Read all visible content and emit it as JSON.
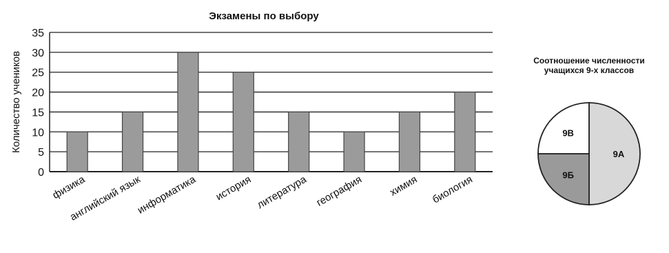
{
  "chart_data": [
    {
      "type": "bar",
      "title": "Экзамены по выбору",
      "xlabel": "",
      "ylabel": "Количество учеников",
      "ylim": [
        0,
        35
      ],
      "yticks": [
        0,
        5,
        10,
        15,
        20,
        25,
        30,
        35
      ],
      "grid": true,
      "categories": [
        "физика",
        "английский язык",
        "информатика",
        "история",
        "литература",
        "география",
        "химия",
        "биология"
      ],
      "values": [
        10,
        15,
        30,
        25,
        15,
        10,
        15,
        20
      ],
      "colors": {
        "bar": "#9b9b9b",
        "bar_edge": "#444444",
        "grid": "#222222"
      }
    },
    {
      "type": "pie",
      "title": "Соотношение численности учащихся 9-х классов",
      "title_lines": [
        "Соотношение численности",
        "учащихся 9-х классов"
      ],
      "labels": [
        "9А",
        "9Б",
        "9В"
      ],
      "values": [
        50,
        25,
        25
      ],
      "colors": [
        "#d8d8d8",
        "#9a9a9a",
        "#ffffff"
      ]
    }
  ]
}
